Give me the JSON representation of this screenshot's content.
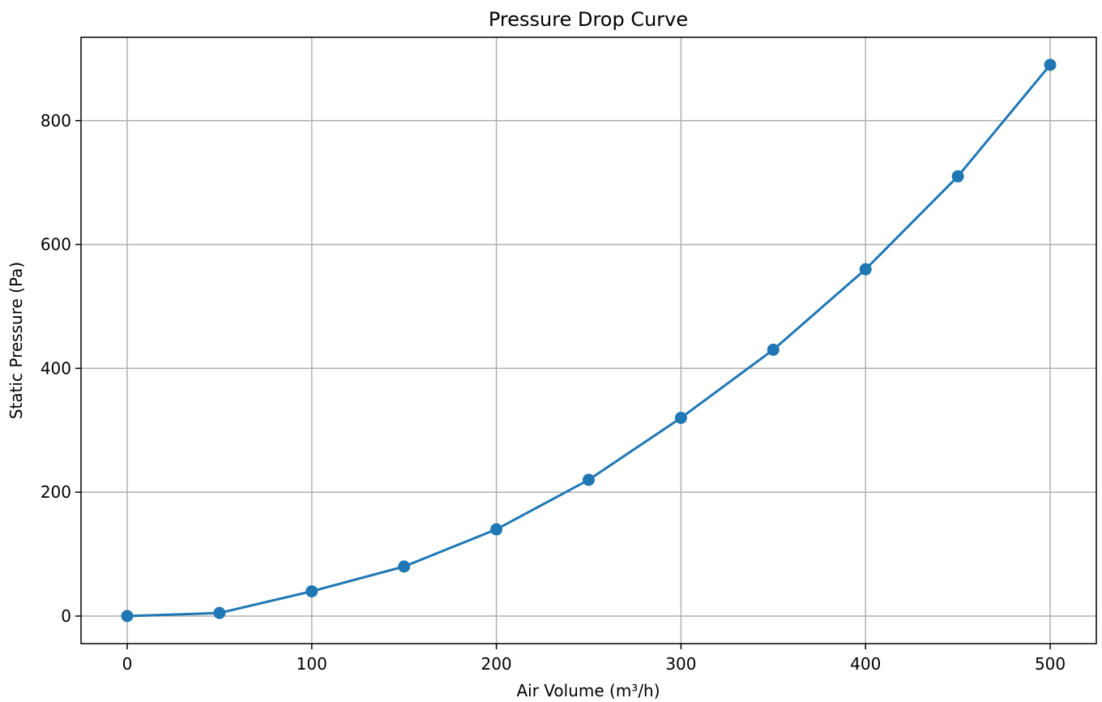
{
  "chart_data": {
    "type": "line",
    "title": "Pressure Drop Curve",
    "xlabel": "Air Volume (m³/h)",
    "ylabel": "Static Pressure (Pa)",
    "x": [
      0,
      50,
      100,
      150,
      200,
      250,
      300,
      350,
      400,
      450,
      500
    ],
    "series": [
      {
        "values": [
          0,
          5,
          40,
          80,
          140,
          220,
          320,
          430,
          560,
          710,
          890
        ],
        "color": "#1f77b4",
        "marker": "circle"
      }
    ],
    "xlim": [
      -25,
      525
    ],
    "ylim": [
      -44.5,
      934.5
    ],
    "xticks": [
      0,
      100,
      200,
      300,
      400,
      500
    ],
    "yticks": [
      0,
      200,
      400,
      600,
      800
    ],
    "xtick_labels": [
      "0",
      "100",
      "200",
      "300",
      "400",
      "500"
    ],
    "ytick_labels": [
      "0",
      "200",
      "400",
      "600",
      "800"
    ],
    "grid": true,
    "grid_color": "#b0b0b0",
    "legend": "none"
  }
}
